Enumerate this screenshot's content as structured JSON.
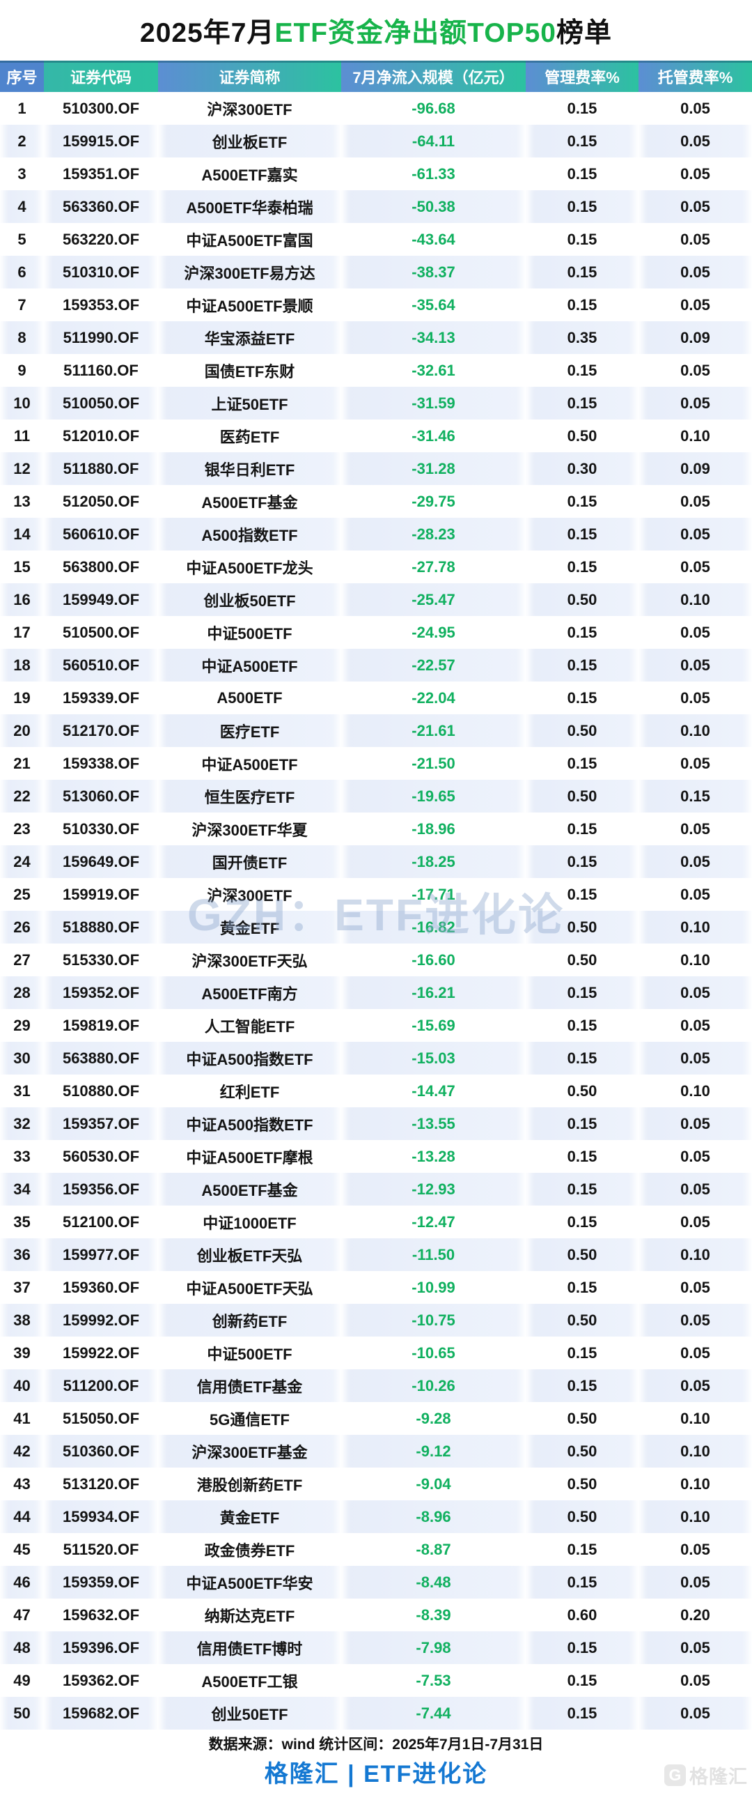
{
  "title": {
    "prefix": "2025年7月",
    "highlight": "ETF资金净出额TOP50",
    "suffix": "榜单"
  },
  "watermark": "GZH：ETF进化论",
  "footer": {
    "source": "数据来源：wind 统计区间：2025年7月1日-7月31日",
    "brand": "格隆汇 | ETF进化论",
    "logo_letter": "G",
    "logo_text": "格隆汇"
  },
  "colors": {
    "header_blue": "#4f84cd",
    "header_teal": "#2cc2a0",
    "title_green": "#17b34a",
    "value_green": "#10b05f",
    "brand_blue": "#1478d2",
    "even_row": "#e9effb",
    "watermark_blue": "#8fa9cf"
  },
  "table": {
    "headers": [
      "序号",
      "证券代码",
      "证券简称",
      "7月净流入规模（亿元）",
      "管理费率%",
      "托管费率%"
    ],
    "rows": [
      [
        "1",
        "510300.OF",
        "沪深300ETF",
        "-96.68",
        "0.15",
        "0.05"
      ],
      [
        "2",
        "159915.OF",
        "创业板ETF",
        "-64.11",
        "0.15",
        "0.05"
      ],
      [
        "3",
        "159351.OF",
        "A500ETF嘉实",
        "-61.33",
        "0.15",
        "0.05"
      ],
      [
        "4",
        "563360.OF",
        "A500ETF华泰柏瑞",
        "-50.38",
        "0.15",
        "0.05"
      ],
      [
        "5",
        "563220.OF",
        "中证A500ETF富国",
        "-43.64",
        "0.15",
        "0.05"
      ],
      [
        "6",
        "510310.OF",
        "沪深300ETF易方达",
        "-38.37",
        "0.15",
        "0.05"
      ],
      [
        "7",
        "159353.OF",
        "中证A500ETF景顺",
        "-35.64",
        "0.15",
        "0.05"
      ],
      [
        "8",
        "511990.OF",
        "华宝添益ETF",
        "-34.13",
        "0.35",
        "0.09"
      ],
      [
        "9",
        "511160.OF",
        "国债ETF东财",
        "-32.61",
        "0.15",
        "0.05"
      ],
      [
        "10",
        "510050.OF",
        "上证50ETF",
        "-31.59",
        "0.15",
        "0.05"
      ],
      [
        "11",
        "512010.OF",
        "医药ETF",
        "-31.46",
        "0.50",
        "0.10"
      ],
      [
        "12",
        "511880.OF",
        "银华日利ETF",
        "-31.28",
        "0.30",
        "0.09"
      ],
      [
        "13",
        "512050.OF",
        "A500ETF基金",
        "-29.75",
        "0.15",
        "0.05"
      ],
      [
        "14",
        "560610.OF",
        "A500指数ETF",
        "-28.23",
        "0.15",
        "0.05"
      ],
      [
        "15",
        "563800.OF",
        "中证A500ETF龙头",
        "-27.78",
        "0.15",
        "0.05"
      ],
      [
        "16",
        "159949.OF",
        "创业板50ETF",
        "-25.47",
        "0.50",
        "0.10"
      ],
      [
        "17",
        "510500.OF",
        "中证500ETF",
        "-24.95",
        "0.15",
        "0.05"
      ],
      [
        "18",
        "560510.OF",
        "中证A500ETF",
        "-22.57",
        "0.15",
        "0.05"
      ],
      [
        "19",
        "159339.OF",
        "A500ETF",
        "-22.04",
        "0.15",
        "0.05"
      ],
      [
        "20",
        "512170.OF",
        "医疗ETF",
        "-21.61",
        "0.50",
        "0.10"
      ],
      [
        "21",
        "159338.OF",
        "中证A500ETF",
        "-21.50",
        "0.15",
        "0.05"
      ],
      [
        "22",
        "513060.OF",
        "恒生医疗ETF",
        "-19.65",
        "0.50",
        "0.15"
      ],
      [
        "23",
        "510330.OF",
        "沪深300ETF华夏",
        "-18.96",
        "0.15",
        "0.05"
      ],
      [
        "24",
        "159649.OF",
        "国开债ETF",
        "-18.25",
        "0.15",
        "0.05"
      ],
      [
        "25",
        "159919.OF",
        "沪深300ETF",
        "-17.71",
        "0.15",
        "0.05"
      ],
      [
        "26",
        "518880.OF",
        "黄金ETF",
        "-16.82",
        "0.50",
        "0.10"
      ],
      [
        "27",
        "515330.OF",
        "沪深300ETF天弘",
        "-16.60",
        "0.50",
        "0.10"
      ],
      [
        "28",
        "159352.OF",
        "A500ETF南方",
        "-16.21",
        "0.15",
        "0.05"
      ],
      [
        "29",
        "159819.OF",
        "人工智能ETF",
        "-15.69",
        "0.15",
        "0.05"
      ],
      [
        "30",
        "563880.OF",
        "中证A500指数ETF",
        "-15.03",
        "0.15",
        "0.05"
      ],
      [
        "31",
        "510880.OF",
        "红利ETF",
        "-14.47",
        "0.50",
        "0.10"
      ],
      [
        "32",
        "159357.OF",
        "中证A500指数ETF",
        "-13.55",
        "0.15",
        "0.05"
      ],
      [
        "33",
        "560530.OF",
        "中证A500ETF摩根",
        "-13.28",
        "0.15",
        "0.05"
      ],
      [
        "34",
        "159356.OF",
        "A500ETF基金",
        "-12.93",
        "0.15",
        "0.05"
      ],
      [
        "35",
        "512100.OF",
        "中证1000ETF",
        "-12.47",
        "0.15",
        "0.05"
      ],
      [
        "36",
        "159977.OF",
        "创业板ETF天弘",
        "-11.50",
        "0.50",
        "0.10"
      ],
      [
        "37",
        "159360.OF",
        "中证A500ETF天弘",
        "-10.99",
        "0.15",
        "0.05"
      ],
      [
        "38",
        "159992.OF",
        "创新药ETF",
        "-10.75",
        "0.50",
        "0.05"
      ],
      [
        "39",
        "159922.OF",
        "中证500ETF",
        "-10.65",
        "0.15",
        "0.05"
      ],
      [
        "40",
        "511200.OF",
        "信用债ETF基金",
        "-10.26",
        "0.15",
        "0.05"
      ],
      [
        "41",
        "515050.OF",
        "5G通信ETF",
        "-9.28",
        "0.50",
        "0.10"
      ],
      [
        "42",
        "510360.OF",
        "沪深300ETF基金",
        "-9.12",
        "0.50",
        "0.10"
      ],
      [
        "43",
        "513120.OF",
        "港股创新药ETF",
        "-9.04",
        "0.50",
        "0.10"
      ],
      [
        "44",
        "159934.OF",
        "黄金ETF",
        "-8.96",
        "0.50",
        "0.10"
      ],
      [
        "45",
        "511520.OF",
        "政金债券ETF",
        "-8.87",
        "0.15",
        "0.05"
      ],
      [
        "46",
        "159359.OF",
        "中证A500ETF华安",
        "-8.48",
        "0.15",
        "0.05"
      ],
      [
        "47",
        "159632.OF",
        "纳斯达克ETF",
        "-8.39",
        "0.60",
        "0.20"
      ],
      [
        "48",
        "159396.OF",
        "信用债ETF博时",
        "-7.98",
        "0.15",
        "0.05"
      ],
      [
        "49",
        "159362.OF",
        "A500ETF工银",
        "-7.53",
        "0.15",
        "0.05"
      ],
      [
        "50",
        "159682.OF",
        "创业50ETF",
        "-7.44",
        "0.15",
        "0.05"
      ]
    ]
  },
  "chart_data": {
    "type": "table",
    "title": "2025年7月ETF资金净出额TOP50榜单",
    "columns": [
      "序号",
      "证券代码",
      "证券简称",
      "7月净流入规模（亿元）",
      "管理费率%",
      "托管费率%"
    ],
    "flow_values": [
      -96.68,
      -64.11,
      -61.33,
      -50.38,
      -43.64,
      -38.37,
      -35.64,
      -34.13,
      -32.61,
      -31.59,
      -31.46,
      -31.28,
      -29.75,
      -28.23,
      -27.78,
      -25.47,
      -24.95,
      -22.57,
      -22.04,
      -21.61,
      -21.5,
      -19.65,
      -18.96,
      -18.25,
      -17.71,
      -16.82,
      -16.6,
      -16.21,
      -15.69,
      -15.03,
      -14.47,
      -13.55,
      -13.28,
      -12.93,
      -12.47,
      -11.5,
      -10.99,
      -10.75,
      -10.65,
      -10.26,
      -9.28,
      -9.12,
      -9.04,
      -8.96,
      -8.87,
      -8.48,
      -8.39,
      -7.98,
      -7.53,
      -7.44
    ]
  }
}
